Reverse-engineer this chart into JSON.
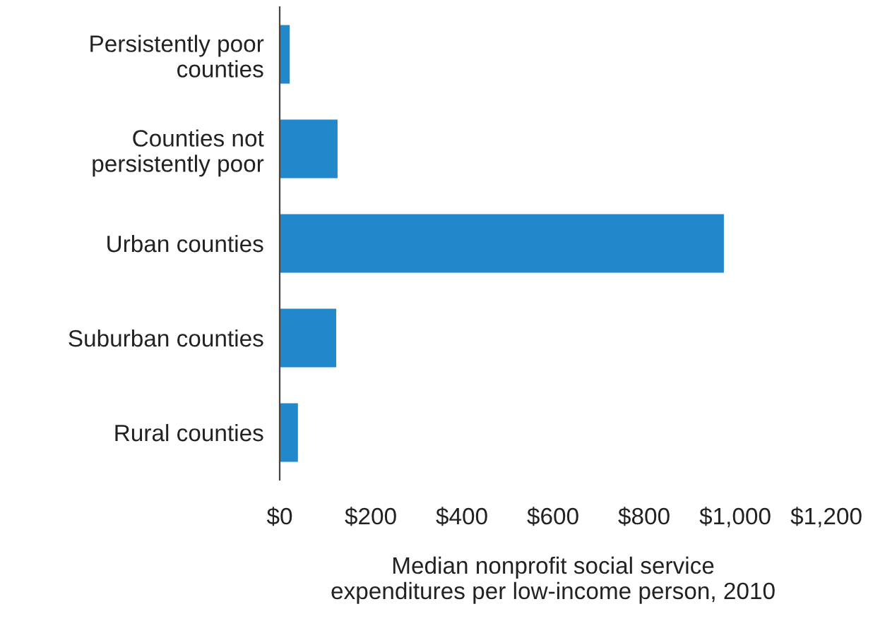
{
  "chart_data": {
    "type": "bar",
    "orientation": "horizontal",
    "xlabel": "Median nonprofit social service\nexpenditures per low-income person, 2010",
    "categories": [
      "Persistently poor\ncounties",
      "Counties not\npersistently poor",
      "Urban counties",
      "Suburban counties",
      "Rural counties"
    ],
    "values": [
      22,
      127,
      975,
      124,
      40
    ],
    "color": "#2188cc",
    "xlim": [
      0,
      1200
    ],
    "xticks": [
      {
        "value": 0,
        "label": "$0"
      },
      {
        "value": 200,
        "label": "$200"
      },
      {
        "value": 400,
        "label": "$400"
      },
      {
        "value": 600,
        "label": "$600"
      },
      {
        "value": 800,
        "label": "$800"
      },
      {
        "value": 1000,
        "label": "$1,000"
      },
      {
        "value": 1200,
        "label": "$1,200"
      }
    ],
    "grid": false,
    "legend": false
  }
}
